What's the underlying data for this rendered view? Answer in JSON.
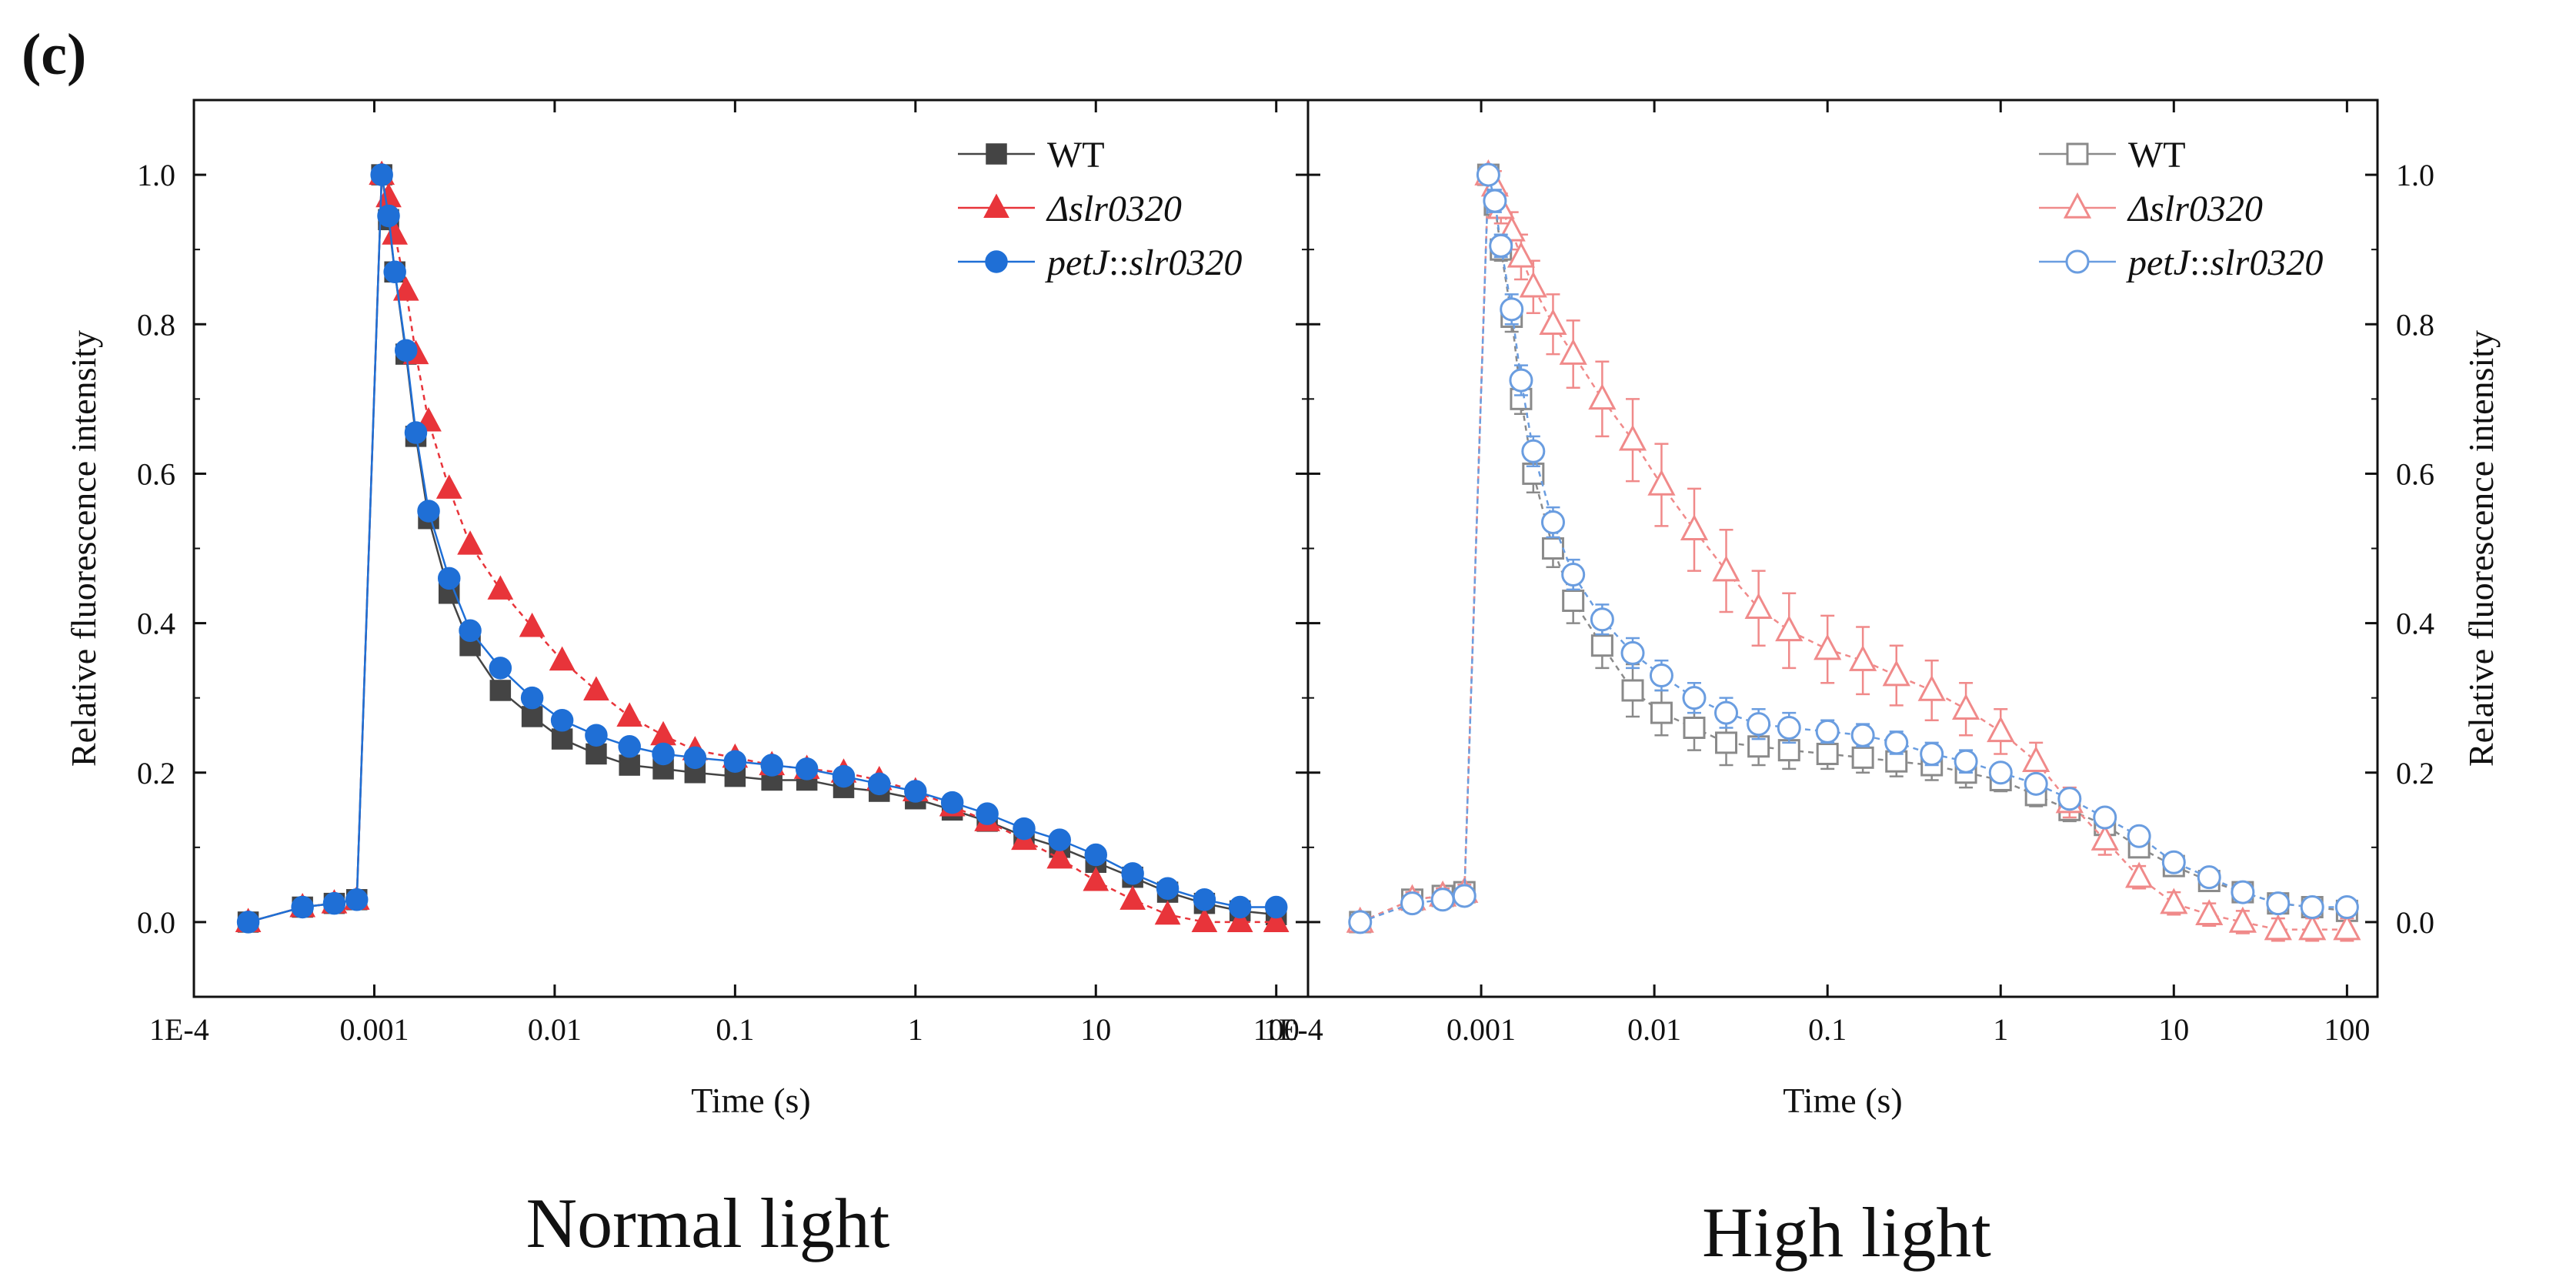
{
  "panel_label": "(c)",
  "chart_data": [
    {
      "type": "line",
      "name": "normal",
      "title": "Normal light",
      "xlabel": "Time (s)",
      "ylabel": "Relative fluorescence intensity",
      "xscale": "log",
      "xlim": [
        0.0001,
        150
      ],
      "ylim": [
        -0.1,
        1.1
      ],
      "x_ticks": [
        "1E-4",
        "0.001",
        "0.01",
        "0.1",
        "1",
        "10",
        "100"
      ],
      "y_ticks": [
        "0.0",
        "0.2",
        "0.4",
        "0.6",
        "0.8",
        "1.0"
      ],
      "ylabel_side": "left",
      "legend_position": "top-right",
      "x": [
        0.0002,
        0.0004,
        0.0006,
        0.0008,
        0.0011,
        0.0012,
        0.0013,
        0.0015,
        0.0017,
        0.002,
        0.0026,
        0.0034,
        0.005,
        0.0075,
        0.011,
        0.017,
        0.026,
        0.04,
        0.06,
        0.1,
        0.16,
        0.25,
        0.4,
        0.63,
        1,
        1.6,
        2.5,
        4,
        6.3,
        10,
        16,
        25,
        40,
        63,
        100
      ],
      "series": [
        {
          "name": "WT",
          "color": "#444444",
          "marker": "square",
          "filled": true,
          "values": [
            0.0,
            0.02,
            0.025,
            0.03,
            1.0,
            0.94,
            0.87,
            0.76,
            0.65,
            0.54,
            0.44,
            0.37,
            0.31,
            0.275,
            0.245,
            0.225,
            0.21,
            0.205,
            0.2,
            0.195,
            0.19,
            0.19,
            0.18,
            0.175,
            0.165,
            0.15,
            0.135,
            0.115,
            0.1,
            0.08,
            0.06,
            0.04,
            0.025,
            0.015,
            0.01
          ],
          "errors": []
        },
        {
          "name": "Δslr0320",
          "color": "#e8343a",
          "marker": "triangle",
          "filled": true,
          "values": [
            0.0,
            0.02,
            0.025,
            0.03,
            1.0,
            0.97,
            0.92,
            0.845,
            0.76,
            0.67,
            0.58,
            0.505,
            0.445,
            0.395,
            0.35,
            0.31,
            0.275,
            0.25,
            0.23,
            0.22,
            0.21,
            0.205,
            0.2,
            0.19,
            0.175,
            0.155,
            0.135,
            0.11,
            0.085,
            0.055,
            0.03,
            0.01,
            0.0,
            0.0,
            0.0
          ],
          "errors": []
        },
        {
          "name": "petJ::slr0320",
          "color": "#1f6fd6",
          "marker": "circle",
          "filled": true,
          "values": [
            0.0,
            0.02,
            0.025,
            0.03,
            1.0,
            0.945,
            0.87,
            0.765,
            0.655,
            0.55,
            0.46,
            0.39,
            0.34,
            0.3,
            0.27,
            0.25,
            0.235,
            0.225,
            0.22,
            0.215,
            0.21,
            0.205,
            0.195,
            0.185,
            0.175,
            0.16,
            0.145,
            0.125,
            0.11,
            0.09,
            0.065,
            0.045,
            0.03,
            0.02,
            0.02
          ],
          "errors": []
        }
      ]
    },
    {
      "type": "line",
      "name": "high",
      "title": "High light",
      "xlabel": "Time (s)",
      "ylabel": "Relative fluorescence intensity",
      "xscale": "log",
      "xlim": [
        0.0001,
        150
      ],
      "ylim": [
        -0.1,
        1.1
      ],
      "x_ticks": [
        "1E-4",
        "0.001",
        "0.01",
        "0.1",
        "1",
        "10",
        "100"
      ],
      "y_ticks": [
        "0.0",
        "0.2",
        "0.4",
        "0.6",
        "0.8",
        "1.0"
      ],
      "ylabel_side": "right",
      "legend_position": "top-right",
      "x": [
        0.0002,
        0.0004,
        0.0006,
        0.0008,
        0.0011,
        0.0012,
        0.0013,
        0.0015,
        0.0017,
        0.002,
        0.0026,
        0.0034,
        0.005,
        0.0075,
        0.011,
        0.017,
        0.026,
        0.04,
        0.06,
        0.1,
        0.16,
        0.25,
        0.4,
        0.63,
        1,
        1.6,
        2.5,
        4,
        6.3,
        10,
        16,
        25,
        40,
        63,
        100
      ],
      "series": [
        {
          "name": "WT",
          "color": "#8a8a8a",
          "marker": "square",
          "filled": false,
          "values": [
            0.0,
            0.03,
            0.035,
            0.04,
            1.0,
            0.96,
            0.9,
            0.81,
            0.7,
            0.6,
            0.5,
            0.43,
            0.37,
            0.31,
            0.28,
            0.26,
            0.24,
            0.235,
            0.23,
            0.225,
            0.22,
            0.215,
            0.21,
            0.2,
            0.19,
            0.17,
            0.15,
            0.13,
            0.1,
            0.075,
            0.055,
            0.04,
            0.025,
            0.02,
            0.015
          ],
          "errors": [
            0.005,
            0.01,
            0.01,
            0.01,
            0.01,
            0.015,
            0.015,
            0.02,
            0.02,
            0.025,
            0.025,
            0.03,
            0.03,
            0.035,
            0.03,
            0.03,
            0.03,
            0.025,
            0.025,
            0.02,
            0.02,
            0.02,
            0.02,
            0.02,
            0.015,
            0.015,
            0.015,
            0.01,
            0.01,
            0.01,
            0.01,
            0.01,
            0.01,
            0.01,
            0.01
          ]
        },
        {
          "name": "Δslr0320",
          "color": "#f08a8a",
          "marker": "triangle",
          "filled": false,
          "values": [
            0.0,
            0.03,
            0.035,
            0.04,
            1.0,
            0.985,
            0.955,
            0.925,
            0.89,
            0.85,
            0.8,
            0.76,
            0.7,
            0.645,
            0.585,
            0.525,
            0.47,
            0.42,
            0.39,
            0.365,
            0.35,
            0.33,
            0.31,
            0.285,
            0.255,
            0.215,
            0.16,
            0.11,
            0.06,
            0.025,
            0.01,
            0.0,
            -0.01,
            -0.01,
            -0.01
          ],
          "errors": [
            0.005,
            0.01,
            0.01,
            0.01,
            0.01,
            0.02,
            0.02,
            0.025,
            0.03,
            0.035,
            0.04,
            0.045,
            0.05,
            0.055,
            0.055,
            0.055,
            0.055,
            0.05,
            0.05,
            0.045,
            0.045,
            0.04,
            0.04,
            0.035,
            0.03,
            0.025,
            0.02,
            0.02,
            0.015,
            0.015,
            0.015,
            0.015,
            0.015,
            0.015,
            0.015
          ]
        },
        {
          "name": "petJ::slr0320",
          "color": "#6a9de0",
          "marker": "circle",
          "filled": false,
          "values": [
            0.0,
            0.025,
            0.03,
            0.035,
            1.0,
            0.965,
            0.905,
            0.82,
            0.725,
            0.63,
            0.535,
            0.465,
            0.405,
            0.36,
            0.33,
            0.3,
            0.28,
            0.265,
            0.26,
            0.255,
            0.25,
            0.24,
            0.225,
            0.215,
            0.2,
            0.185,
            0.165,
            0.14,
            0.115,
            0.08,
            0.06,
            0.04,
            0.025,
            0.02,
            0.02
          ],
          "errors": [
            0.005,
            0.01,
            0.01,
            0.01,
            0.01,
            0.015,
            0.015,
            0.02,
            0.02,
            0.02,
            0.02,
            0.02,
            0.02,
            0.02,
            0.02,
            0.02,
            0.02,
            0.02,
            0.02,
            0.015,
            0.015,
            0.015,
            0.015,
            0.015,
            0.01,
            0.01,
            0.01,
            0.01,
            0.01,
            0.01,
            0.01,
            0.01,
            0.01,
            0.01,
            0.01
          ]
        }
      ]
    }
  ]
}
